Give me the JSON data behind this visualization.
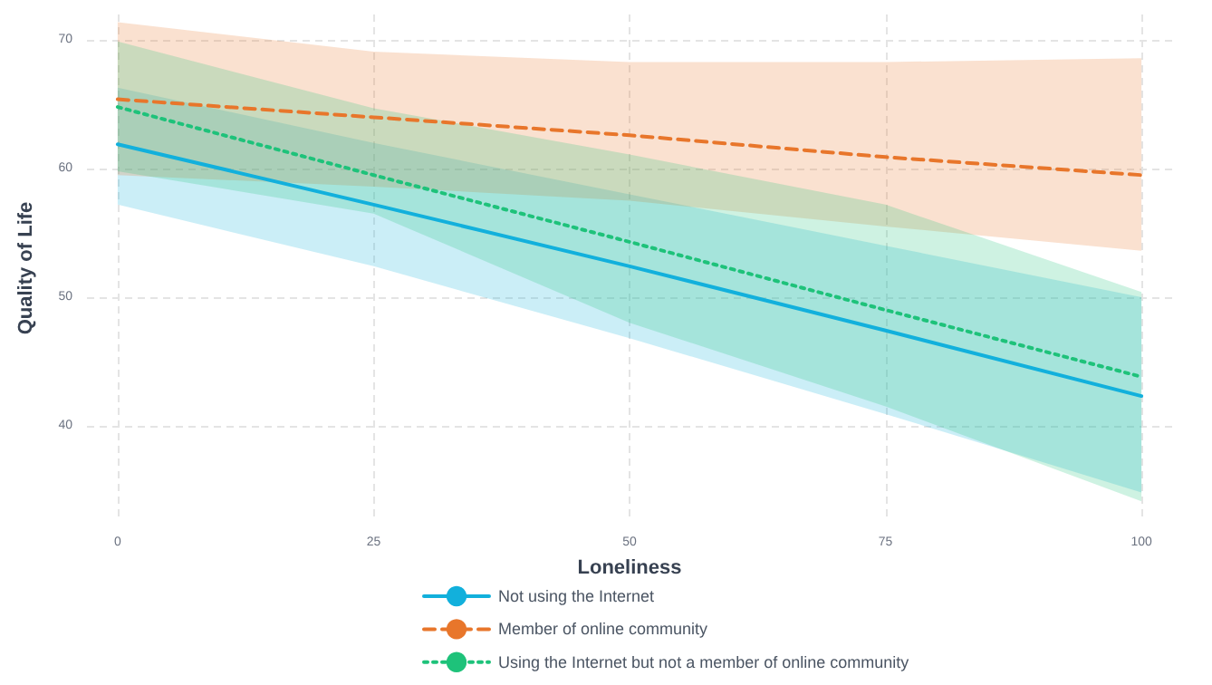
{
  "chart_data": {
    "type": "line",
    "xlabel": "Loneliness",
    "ylabel": "Quality of Life",
    "x": [
      0,
      25,
      50,
      75,
      100
    ],
    "xlim": [
      -3,
      103
    ],
    "xticks": [
      0,
      25,
      50,
      75,
      100
    ],
    "ylim": [
      32.5,
      72
    ],
    "yticks": [
      40,
      50,
      60,
      70
    ],
    "grid": true,
    "legend": "bottom",
    "marker": "none",
    "series": [
      {
        "name": "Not using the Internet",
        "color": "#12b0dc",
        "line_style": "solid",
        "values": [
          61.9,
          57.2,
          52.4,
          47.4,
          42.3
        ],
        "lower": [
          57.2,
          52.4,
          46.8,
          40.9,
          34.8
        ],
        "upper": [
          66.3,
          62.0,
          58.0,
          54.0,
          50.0
        ]
      },
      {
        "name": "Member of online community",
        "color": "#e8762b",
        "line_style": "dashed",
        "values": [
          65.4,
          64.0,
          62.6,
          60.9,
          59.5
        ],
        "lower": [
          59.5,
          58.6,
          57.5,
          55.5,
          53.6
        ],
        "upper": [
          71.4,
          69.1,
          68.3,
          68.3,
          68.6
        ]
      },
      {
        "name": "Using the Internet but not a member of online community",
        "color": "#1ec27a",
        "line_style": "dotted",
        "values": [
          64.8,
          59.5,
          54.3,
          49.0,
          43.8
        ],
        "lower": [
          59.8,
          56.5,
          48.0,
          41.5,
          34.1
        ],
        "upper": [
          69.9,
          64.7,
          61.1,
          57.2,
          50.4
        ]
      }
    ]
  }
}
